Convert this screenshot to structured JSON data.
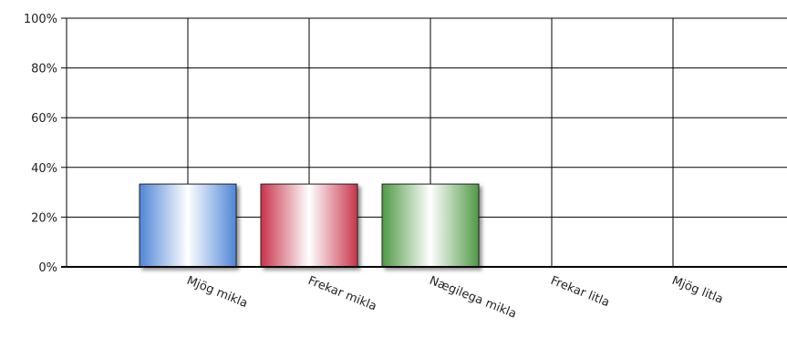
{
  "chart_data": {
    "type": "bar",
    "categories": [
      "Mjög mikla",
      "Frekar mikla",
      "Nægilega mikla",
      "Frekar litla",
      "Mjög litla"
    ],
    "values": [
      33.3,
      33.3,
      33.3,
      0,
      0
    ],
    "value_unit": "%",
    "ylim": [
      0,
      100
    ],
    "y_ticks": [
      "0%",
      "20%",
      "40%",
      "60%",
      "80%",
      "100%"
    ],
    "y_tick_values": [
      0,
      20,
      40,
      60,
      80,
      100
    ],
    "grid": true,
    "bar_colors": [
      "#4f86d6",
      "#c8344c",
      "#4f9a45"
    ],
    "legend": "none"
  }
}
